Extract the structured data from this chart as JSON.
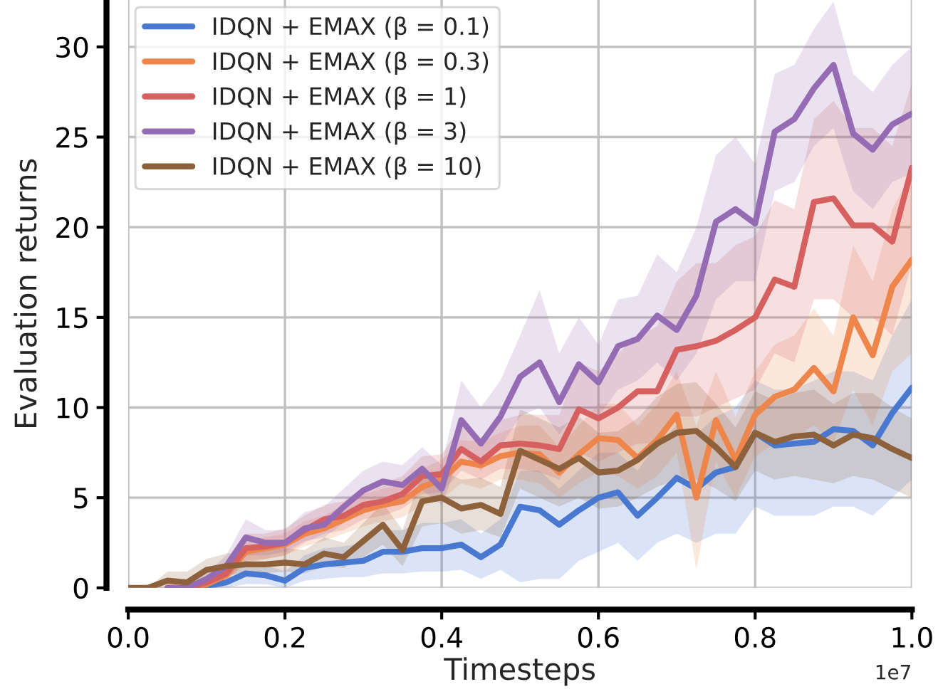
{
  "chart_data": {
    "type": "line",
    "xlabel": "Timesteps",
    "ylabel": "Evaluation returns",
    "annotations": [
      "1e7"
    ],
    "x": [
      0,
      0.025,
      0.05,
      0.075,
      0.1,
      0.125,
      0.15,
      0.175,
      0.2,
      0.225,
      0.25,
      0.275,
      0.3,
      0.325,
      0.35,
      0.375,
      0.4,
      0.425,
      0.45,
      0.475,
      0.5,
      0.525,
      0.55,
      0.575,
      0.6,
      0.625,
      0.65,
      0.675,
      0.7,
      0.725,
      0.75,
      0.775,
      0.8,
      0.825,
      0.85,
      0.875,
      0.9,
      0.925,
      0.95,
      0.975,
      1.0
    ],
    "xlim": [
      0,
      1.0
    ],
    "xticks": [
      {
        "value": 0,
        "label": "0.0"
      },
      0.2,
      0.4,
      0.6,
      0.8,
      {
        "value": 1,
        "label": "1.0"
      }
    ],
    "ylim": [
      0,
      32.6
    ],
    "yticks": [
      0,
      5,
      10,
      15,
      20,
      25,
      30
    ],
    "grid": true,
    "legend": "top left",
    "marker": "none",
    "line_style": "solid",
    "series": [
      {
        "name": "IDQN + EMAX (β = 0.1)",
        "color": "#4878d0",
        "values": [
          null,
          null,
          null,
          0,
          0.1,
          0.3,
          0.8,
          0.7,
          0.4,
          1.1,
          1.3,
          1.4,
          1.5,
          2.0,
          2.0,
          2.2,
          2.2,
          2.4,
          1.7,
          2.4,
          4.5,
          4.3,
          3.5,
          4.3,
          5.0,
          5.3,
          4.0,
          5.0,
          6.1,
          5.5,
          6.4,
          6.7,
          8.6,
          7.9,
          8.0,
          8.1,
          8.8,
          8.7,
          7.9,
          9.7,
          11.1
        ],
        "lower": [
          0,
          0,
          0,
          0,
          0,
          0,
          0.2,
          0.2,
          0,
          0.4,
          0.5,
          0.6,
          0.6,
          0.8,
          0.8,
          0.9,
          0.9,
          1.0,
          0.5,
          1.0,
          0.3,
          0.5,
          0.5,
          1.5,
          2.0,
          2.5,
          1.5,
          2.5,
          3.0,
          2.5,
          3.0,
          3.0,
          4.5,
          4.0,
          4.0,
          4.0,
          4.5,
          4.5,
          4.0,
          5.0,
          6.0
        ],
        "upper": [
          0,
          0,
          0,
          0,
          0.3,
          0.7,
          1.5,
          1.3,
          0.9,
          1.8,
          2.2,
          2.3,
          2.5,
          3.2,
          3.2,
          3.6,
          3.6,
          3.8,
          3.0,
          3.8,
          6.5,
          6.5,
          5.5,
          6.5,
          7.5,
          7.5,
          6.5,
          8.0,
          9.0,
          8.5,
          9.5,
          10.0,
          11.5,
          11.0,
          11.0,
          11.5,
          12.0,
          12.0,
          11.5,
          14.0,
          16.0
        ]
      },
      {
        "name": "IDQN + EMAX (β = 0.3)",
        "color": "#ee854a",
        "values": [
          null,
          null,
          0,
          0,
          0.2,
          0.7,
          2.0,
          2.2,
          2.4,
          3.0,
          3.3,
          3.8,
          4.3,
          4.6,
          4.8,
          5.6,
          6.0,
          7.0,
          6.8,
          7.3,
          7.5,
          7.4,
          6.4,
          7.4,
          8.3,
          8.2,
          7.2,
          8.2,
          9.6,
          5.0,
          9.3,
          7.1,
          9.6,
          10.6,
          11.0,
          12.2,
          10.9,
          15.0,
          12.9,
          16.7,
          18.2
        ],
        "lower": [
          0,
          0,
          0,
          0,
          0,
          0.3,
          1.4,
          1.6,
          1.8,
          2.3,
          2.6,
          3.0,
          3.4,
          3.7,
          3.9,
          4.6,
          4.9,
          5.8,
          5.5,
          6.0,
          6.0,
          5.8,
          5.0,
          5.8,
          6.4,
          6.2,
          5.5,
          6.2,
          7.5,
          1.0,
          7.0,
          5.0,
          7.3,
          8.0,
          8.3,
          9.0,
          8.0,
          11.0,
          9.0,
          12.0,
          13.0
        ],
        "upper": [
          0,
          0,
          0,
          0,
          0.4,
          1.1,
          2.6,
          2.8,
          3.0,
          3.7,
          4.0,
          4.6,
          5.2,
          5.5,
          5.7,
          6.6,
          7.1,
          8.2,
          8.1,
          8.6,
          9.0,
          9.0,
          7.8,
          9.0,
          10.2,
          10.2,
          9.0,
          10.2,
          12.0,
          9.0,
          12.0,
          9.5,
          12.0,
          13.5,
          14.0,
          15.5,
          14.0,
          19.0,
          17.0,
          21.0,
          23.0
        ]
      },
      {
        "name": "IDQN + EMAX (β = 1)",
        "color": "#d65f5f",
        "values": [
          null,
          null,
          0,
          0,
          0.3,
          0.8,
          2.2,
          2.3,
          2.5,
          3.2,
          3.8,
          4.0,
          4.6,
          4.8,
          5.2,
          6.2,
          6.3,
          7.7,
          7.0,
          7.9,
          8.0,
          7.9,
          7.7,
          9.9,
          9.4,
          10.0,
          10.9,
          10.9,
          13.2,
          13.4,
          13.7,
          14.3,
          15.0,
          17.1,
          16.7,
          21.4,
          21.6,
          20.1,
          20.1,
          19.2,
          23.3
        ],
        "lower": [
          0,
          0,
          0,
          0,
          0,
          0.4,
          1.5,
          1.6,
          1.8,
          2.5,
          3.0,
          3.2,
          3.8,
          4.0,
          4.4,
          5.2,
          5.3,
          6.5,
          6.0,
          6.6,
          6.6,
          6.4,
          6.0,
          7.5,
          7.0,
          7.5,
          8.0,
          8.0,
          9.5,
          9.5,
          10.0,
          10.5,
          11.0,
          13.0,
          12.5,
          16.0,
          16.0,
          15.0,
          15.0,
          14.0,
          18.0
        ],
        "upper": [
          0,
          0,
          0,
          0,
          0.6,
          1.3,
          3.0,
          3.0,
          3.3,
          4.0,
          4.6,
          4.8,
          5.6,
          5.8,
          6.2,
          7.3,
          7.4,
          9.0,
          8.3,
          9.3,
          9.6,
          9.6,
          9.6,
          12.5,
          12.0,
          13.0,
          14.0,
          14.5,
          17.0,
          18.0,
          18.0,
          19.0,
          19.5,
          21.5,
          21.0,
          26.0,
          27.0,
          25.5,
          25.5,
          24.5,
          28.0
        ]
      },
      {
        "name": "IDQN + EMAX (β = 3)",
        "color": "#956cb4",
        "values": [
          null,
          null,
          0,
          0,
          0.5,
          1.2,
          2.8,
          2.5,
          2.5,
          3.3,
          3.5,
          4.5,
          5.4,
          5.9,
          5.7,
          6.6,
          5.5,
          9.3,
          8.0,
          9.5,
          11.7,
          12.5,
          10.3,
          12.4,
          11.4,
          13.4,
          13.8,
          15.1,
          14.3,
          16.2,
          20.3,
          21.0,
          20.2,
          25.3,
          26.0,
          27.7,
          29.0,
          25.2,
          24.3,
          25.7,
          26.3
        ],
        "lower": [
          0,
          0,
          0,
          0,
          0.2,
          0.6,
          1.8,
          1.8,
          2.0,
          2.6,
          2.8,
          3.6,
          4.3,
          4.8,
          4.8,
          5.4,
          4.6,
          7.5,
          6.5,
          7.8,
          9.5,
          10.0,
          8.5,
          10.0,
          9.5,
          11.0,
          11.5,
          12.5,
          11.5,
          13.0,
          16.0,
          17.0,
          17.0,
          22.0,
          22.5,
          24.5,
          25.5,
          22.0,
          21.0,
          22.5,
          23.0
        ],
        "upper": [
          0,
          0,
          0,
          0,
          0.8,
          1.8,
          3.8,
          3.2,
          3.2,
          4.2,
          4.5,
          5.5,
          6.5,
          7.0,
          6.8,
          7.8,
          6.8,
          11.5,
          10.0,
          11.5,
          14.0,
          16.5,
          13.0,
          15.0,
          13.5,
          16.0,
          16.2,
          18.5,
          17.5,
          20.0,
          24.0,
          25.0,
          23.5,
          28.5,
          29.0,
          31.0,
          32.5,
          28.5,
          27.5,
          29.0,
          30.0
        ]
      },
      {
        "name": "IDQN + EMAX (β = 10)",
        "color": "#8c613c",
        "values": [
          0,
          0,
          0.4,
          0.3,
          1.0,
          1.2,
          1.3,
          1.3,
          1.4,
          1.3,
          1.9,
          1.7,
          2.6,
          3.5,
          2.1,
          4.8,
          5.0,
          4.4,
          4.6,
          4.1,
          7.6,
          7.1,
          6.6,
          7.2,
          6.4,
          6.5,
          7.1,
          8.0,
          8.6,
          8.7,
          7.8,
          6.7,
          8.6,
          8.1,
          8.4,
          8.5,
          7.9,
          8.5,
          8.3,
          7.7,
          7.2
        ],
        "lower": [
          0,
          0,
          0,
          0,
          0.5,
          0.7,
          0.8,
          0.8,
          0.9,
          0.8,
          1.2,
          1.1,
          1.7,
          2.4,
          1.2,
          3.4,
          3.6,
          3.0,
          3.2,
          2.8,
          5.5,
          5.0,
          4.5,
          5.0,
          4.4,
          4.5,
          5.0,
          5.6,
          6.0,
          6.0,
          5.5,
          4.8,
          6.5,
          6.0,
          6.2,
          6.0,
          5.8,
          6.2,
          6.0,
          5.5,
          5.0
        ],
        "upper": [
          0,
          0,
          0.9,
          0.9,
          1.6,
          1.9,
          2.0,
          2.1,
          2.2,
          2.1,
          2.8,
          2.5,
          3.6,
          4.7,
          3.2,
          6.4,
          6.5,
          6.0,
          6.1,
          5.6,
          9.9,
          9.4,
          8.9,
          9.5,
          8.6,
          8.7,
          9.4,
          10.6,
          11.3,
          11.4,
          10.2,
          8.9,
          10.9,
          10.4,
          10.8,
          11.0,
          10.2,
          10.8,
          10.8,
          10.0,
          9.4
        ]
      }
    ]
  }
}
